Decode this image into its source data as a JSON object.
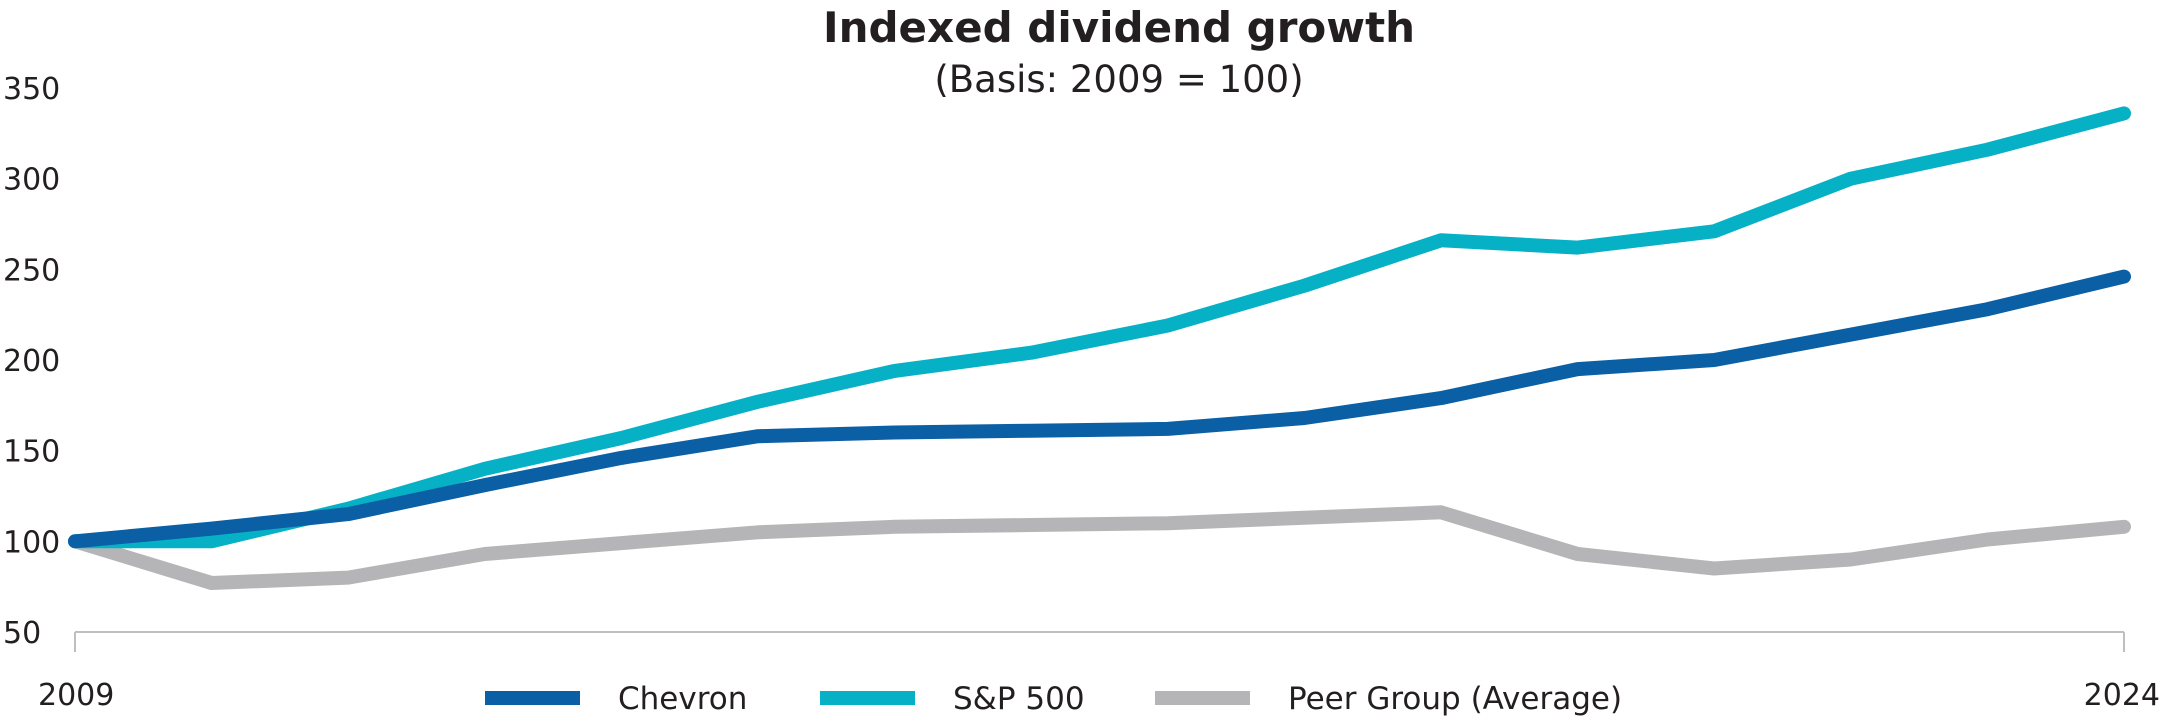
{
  "chart_data": {
    "type": "line",
    "title": "Indexed dividend growth",
    "subtitle": "(Basis: 2009 = 100)",
    "xlabel": "",
    "ylabel": "",
    "x": [
      2009,
      2010,
      2011,
      2012,
      2013,
      2014,
      2015,
      2016,
      2017,
      2018,
      2019,
      2020,
      2021,
      2022,
      2023,
      2024
    ],
    "x_tick_labels": [
      "2009",
      "2024"
    ],
    "ylim": [
      50,
      350
    ],
    "y_ticks": [
      50,
      100,
      150,
      200,
      250,
      300,
      350
    ],
    "grid": false,
    "legend_position": "bottom",
    "series": [
      {
        "name": "Chevron",
        "color": "#0b5fa5",
        "values": [
          100,
          107,
          115,
          131,
          146,
          158,
          160,
          161,
          162,
          168,
          179,
          195,
          200,
          214,
          228,
          246
        ]
      },
      {
        "name": "S&P 500",
        "color": "#06b1c5",
        "values": [
          100,
          100,
          118,
          140,
          157,
          177,
          194,
          204,
          219,
          241,
          266,
          262,
          271,
          300,
          316,
          336
        ]
      },
      {
        "name": "Peer Group (Average)",
        "color": "#b5b5b8",
        "values": [
          100,
          77,
          80,
          93,
          99,
          105,
          108,
          109,
          110,
          113,
          116,
          93,
          85,
          90,
          101,
          108
        ]
      }
    ]
  }
}
